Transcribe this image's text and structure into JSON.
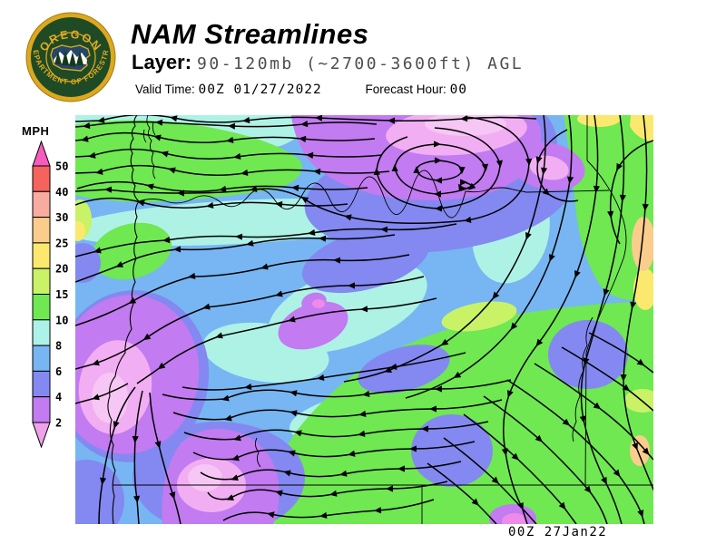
{
  "header": {
    "title": "NAM Streamlines",
    "layer_label": "Layer:",
    "layer_value": "90-120mb (~2700-3600ft) AGL",
    "valid_time_label": "Valid Time:",
    "valid_time_value": "00Z 01/27/2022",
    "forecast_hour_label": "Forecast Hour:",
    "forecast_hour_value": "00"
  },
  "logo": {
    "arc_top": "OREGON",
    "arc_bottom": "DEPARTMENT OF FORESTRY",
    "colors": {
      "gold": "#dda81e",
      "ring_green": "#1f4a26",
      "state_navy": "#24466b"
    }
  },
  "legend": {
    "title": "MPH",
    "units": "MPH",
    "tick_labels": [
      "50",
      "40",
      "30",
      "25",
      "20",
      "15",
      "10",
      "8",
      "6",
      "4",
      "2"
    ],
    "segment_colors_top_to_bottom": [
      "#f4635c",
      "#f8aca0",
      "#facd8c",
      "#fae96e",
      "#c9f266",
      "#6fe852",
      "#adf2e8",
      "#77b6f2",
      "#8389f0",
      "#c27bf0"
    ],
    "over_range_arrow_color": "#f75bbe",
    "under_range_arrow_color": "#eda2ea"
  },
  "map": {
    "timestamp": "00Z 27Jan22",
    "field_palette": {
      "under_2": "#f2aef2",
      "2_4": "#c27bf0",
      "4_6": "#8389f0",
      "6_8": "#77b6f2",
      "8_10": "#aef2e6",
      "10_15": "#6fe852",
      "15_20": "#c9f266",
      "20_25": "#fae96e",
      "25_30": "#facd8c"
    }
  }
}
